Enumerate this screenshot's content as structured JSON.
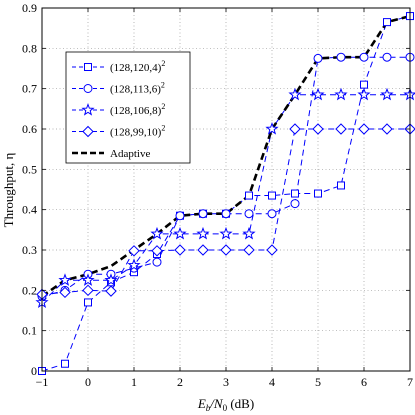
{
  "chart_data": {
    "type": "line",
    "xlabel": "E_b/N_0 (dB)",
    "xlabel_parts": {
      "main": "E",
      "sub1": "b",
      "slash": "/N",
      "sub2": "0",
      "rest": " (dB)"
    },
    "ylabel": "Throughput, η",
    "xlim": [
      -1,
      7
    ],
    "ylim": [
      0,
      0.9
    ],
    "xticks": [
      -1,
      0,
      1,
      2,
      3,
      4,
      5,
      6,
      7
    ],
    "yticks": [
      0,
      0.1,
      0.2,
      0.3,
      0.4,
      0.5,
      0.6,
      0.7,
      0.8,
      0.9
    ],
    "xtick_labels": [
      "−1",
      "0",
      "1",
      "2",
      "3",
      "4",
      "5",
      "6",
      "7"
    ],
    "ytick_labels": [
      "0",
      "0.1",
      "0.2",
      "0.3",
      "0.4",
      "0.5",
      "0.6",
      "0.7",
      "0.8",
      "0.9"
    ],
    "grid": true,
    "legend_position": "top-left",
    "x": [
      -1,
      -0.5,
      0,
      0.5,
      1,
      1.5,
      2,
      2.5,
      3,
      3.5,
      4,
      4.5,
      5,
      5.5,
      6,
      6.5,
      7
    ],
    "series": [
      {
        "name": "(128,120,4)",
        "exp": "2",
        "marker": "square",
        "color": "#0000ff",
        "dash": "dashed",
        "values": [
          0.0,
          0.018,
          0.17,
          0.22,
          0.245,
          0.29,
          0.385,
          0.39,
          0.39,
          0.435,
          0.435,
          0.44,
          0.44,
          0.46,
          0.71,
          0.865,
          0.88
        ]
      },
      {
        "name": "(128,113,6)",
        "exp": "2",
        "marker": "circle",
        "color": "#0000ff",
        "dash": "dashed",
        "values": [
          0.185,
          0.2,
          0.24,
          0.24,
          0.255,
          0.27,
          0.385,
          0.39,
          0.39,
          0.39,
          0.39,
          0.415,
          0.775,
          0.778,
          0.778,
          0.778,
          0.778
        ]
      },
      {
        "name": "(128,106,8)",
        "exp": "2",
        "marker": "star",
        "color": "#0000ff",
        "dash": "dashed",
        "values": [
          0.17,
          0.225,
          0.225,
          0.225,
          0.262,
          0.34,
          0.34,
          0.34,
          0.34,
          0.34,
          0.6,
          0.685,
          0.685,
          0.685,
          0.685,
          0.685,
          0.685
        ]
      },
      {
        "name": "(128,99,10)",
        "exp": "2",
        "marker": "diamond",
        "color": "#0000ff",
        "dash": "dashed",
        "values": [
          0.19,
          0.195,
          0.2,
          0.198,
          0.298,
          0.298,
          0.3,
          0.3,
          0.3,
          0.3,
          0.3,
          0.6,
          0.6,
          0.6,
          0.6,
          0.6,
          0.6
        ]
      },
      {
        "name": "Adaptive",
        "exp": "",
        "marker": "none",
        "color": "#000000",
        "dash": "bold-dashed",
        "values": [
          0.185,
          0.225,
          0.24,
          0.26,
          0.3,
          0.34,
          0.385,
          0.39,
          0.39,
          0.435,
          0.6,
          0.685,
          0.775,
          0.778,
          0.778,
          0.865,
          0.88
        ]
      }
    ]
  }
}
